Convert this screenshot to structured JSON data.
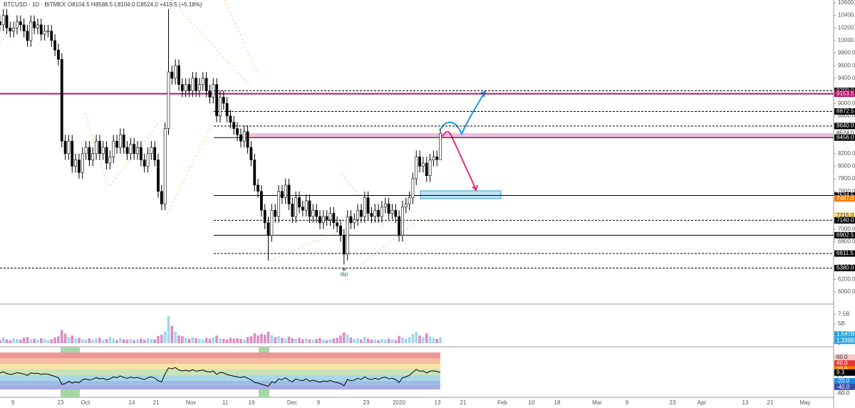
{
  "header": {
    "symbol": "BTCUSD · 1D · BITMEX",
    "ohlc": "O8104.5 H8588.5 L8104.0 C8524.0 +419.5 (+5.18%)"
  },
  "x_labels": [
    "9",
    "23",
    "Oct",
    "14",
    "21",
    "Nov",
    "11",
    "19",
    "Dec",
    "9",
    "23",
    "2020",
    "13",
    "21",
    "Feb",
    "10",
    "18",
    "Mar",
    "9",
    "23",
    "Apr",
    "13",
    "21",
    "May"
  ],
  "chart_data": [
    {
      "type": "candlestick",
      "up_color": "#ffffff",
      "down_color": "#000000",
      "ylim": [
        5830,
        10645
      ],
      "open": [
        10200,
        10300,
        10250,
        10400,
        10200,
        10150,
        10200,
        10300,
        10250,
        10150,
        10000,
        10300,
        10200,
        10250,
        10100,
        10150,
        10150,
        10000,
        9850,
        9700,
        8400,
        8200,
        8400,
        8000,
        8100,
        7900,
        8200,
        8300,
        8100,
        8200,
        8400,
        8200,
        8300,
        8050,
        8150,
        8400,
        8300,
        8500,
        8300,
        8200,
        8350,
        8200,
        8300,
        8100,
        8000,
        8200,
        8300,
        8100,
        7600,
        7400,
        8600,
        9500,
        9400,
        9600,
        9300,
        9200,
        9300,
        9200,
        9400,
        9200,
        9300,
        9400,
        9200,
        9100,
        9300,
        8800,
        9100,
        9000,
        8800,
        8700,
        8600,
        8500,
        8400,
        8550,
        8300,
        8100,
        7700,
        7600,
        7300,
        7100,
        6900,
        7300,
        7200,
        7600,
        7500,
        7700,
        7400,
        7200,
        7500,
        7350,
        7300,
        7450,
        7200,
        7300,
        7200,
        7100,
        7200,
        7150,
        7250,
        7100,
        7050,
        6900,
        6600,
        7200,
        7100,
        7150,
        7300,
        7200,
        7500,
        7250,
        7200,
        7300,
        7200,
        7350,
        7400,
        7250,
        7300,
        7200,
        6900,
        7350,
        7400,
        7500,
        7800,
        8150,
        8000,
        8050,
        7850,
        8100,
        8150,
        8104.5
      ],
      "high": [
        10400,
        10400,
        10500,
        10500,
        10300,
        10300,
        10400,
        10400,
        10350,
        10250,
        10400,
        10400,
        10350,
        10350,
        10250,
        10250,
        10250,
        10100,
        9950,
        9800,
        8500,
        8500,
        8500,
        8200,
        8200,
        8300,
        8400,
        8400,
        8300,
        8500,
        8500,
        8400,
        8400,
        8250,
        8500,
        8500,
        8600,
        8600,
        8400,
        8450,
        8450,
        8400,
        8400,
        8200,
        8300,
        8400,
        8400,
        8200,
        7700,
        8700,
        10500,
        9600,
        9700,
        9700,
        9400,
        9400,
        9400,
        9500,
        9500,
        9400,
        9500,
        9500,
        9300,
        9400,
        9400,
        9200,
        9200,
        9100,
        8900,
        8800,
        8700,
        8600,
        8650,
        8650,
        8400,
        8200,
        7800,
        7700,
        7400,
        7200,
        7400,
        7400,
        7700,
        7700,
        7800,
        7800,
        7500,
        7600,
        7600,
        7450,
        7550,
        7550,
        7400,
        7400,
        7300,
        7300,
        7300,
        7350,
        7350,
        7200,
        7150,
        7000,
        7300,
        7300,
        7250,
        7400,
        7400,
        7600,
        7600,
        7350,
        7400,
        7400,
        7450,
        7500,
        7500,
        7400,
        7400,
        7300,
        7450,
        7500,
        7600,
        7900,
        8250,
        8250,
        8150,
        8150,
        8200,
        8250,
        8250,
        8588.5
      ],
      "low": [
        10100,
        10150,
        10150,
        10100,
        10050,
        10050,
        10100,
        10150,
        10050,
        9900,
        9900,
        10100,
        10100,
        10000,
        10000,
        10050,
        9900,
        9750,
        9600,
        8300,
        8100,
        8100,
        7900,
        7900,
        7800,
        7800,
        8100,
        8000,
        8000,
        8100,
        8100,
        8100,
        7950,
        7950,
        8050,
        8200,
        8200,
        8200,
        8100,
        8100,
        8100,
        8100,
        8000,
        7900,
        7900,
        8100,
        8000,
        7500,
        7300,
        7300,
        8500,
        9300,
        9300,
        9200,
        9100,
        9100,
        9100,
        9100,
        9100,
        9100,
        9200,
        9100,
        9000,
        9000,
        8700,
        8700,
        8900,
        8700,
        8600,
        8500,
        8400,
        8300,
        8300,
        8200,
        8000,
        7600,
        7500,
        7200,
        7000,
        6500,
        6800,
        7100,
        7100,
        7400,
        7400,
        7300,
        7100,
        7100,
        7250,
        7200,
        7200,
        7100,
        7100,
        7100,
        7000,
        7000,
        7050,
        7050,
        7000,
        6950,
        6800,
        6435,
        6500,
        7000,
        7000,
        7050,
        7100,
        7100,
        7150,
        7100,
        7100,
        7100,
        7100,
        7250,
        7150,
        7150,
        7100,
        6800,
        6800,
        7250,
        7300,
        7400,
        7700,
        7900,
        7900,
        7750,
        7750,
        8000,
        8000,
        8104
      ],
      "close": [
        10300,
        10250,
        10400,
        10200,
        10150,
        10200,
        10300,
        10250,
        10150,
        10000,
        10300,
        10200,
        10250,
        10100,
        10150,
        10150,
        10000,
        9850,
        9700,
        8400,
        8200,
        8400,
        8000,
        8100,
        7900,
        8200,
        8300,
        8100,
        8200,
        8400,
        8200,
        8300,
        8050,
        8150,
        8400,
        8300,
        8500,
        8300,
        8200,
        8350,
        8200,
        8300,
        8100,
        8000,
        8200,
        8300,
        8100,
        7600,
        7400,
        8600,
        9500,
        9400,
        9600,
        9300,
        9200,
        9300,
        9200,
        9400,
        9200,
        9300,
        9400,
        9200,
        9100,
        9300,
        8800,
        9100,
        9000,
        8800,
        8700,
        8600,
        8500,
        8400,
        8550,
        8300,
        8100,
        7700,
        7600,
        7300,
        7100,
        6900,
        7300,
        7200,
        7600,
        7500,
        7700,
        7400,
        7200,
        7500,
        7350,
        7300,
        7450,
        7200,
        7300,
        7200,
        7100,
        7200,
        7150,
        7250,
        7100,
        7050,
        6900,
        6600,
        7200,
        7100,
        7150,
        7300,
        7200,
        7500,
        7250,
        7200,
        7300,
        7200,
        7350,
        7400,
        7250,
        7300,
        7200,
        6900,
        7350,
        7400,
        7500,
        7800,
        8150,
        8000,
        8050,
        7850,
        8100,
        8150,
        8104.5,
        8524
      ],
      "yticks": [
        {
          "value": 10600,
          "label": "10600.0"
        },
        {
          "value": 10400,
          "label": "10400.0"
        },
        {
          "value": 10200,
          "label": "10200.0"
        },
        {
          "value": 10000,
          "label": "10000.0"
        },
        {
          "value": 9800,
          "label": "9800.0"
        },
        {
          "value": 9600,
          "label": "9600.0"
        },
        {
          "value": 9400,
          "label": "9400.0"
        },
        {
          "value": 9000,
          "label": "9000.0"
        },
        {
          "value": 8800,
          "label": "8800.0"
        },
        {
          "value": 8200,
          "label": "8200.0"
        },
        {
          "value": 8000,
          "label": "8000.0"
        },
        {
          "value": 7800,
          "label": "7800.0"
        },
        {
          "value": 7600,
          "label": "7600.0"
        },
        {
          "value": 7000,
          "label": "7000.0"
        },
        {
          "value": 6800,
          "label": "6800.0"
        },
        {
          "value": 6400,
          "label": "6400.0"
        },
        {
          "value": 6200,
          "label": "6200.0"
        },
        {
          "value": 6000,
          "label": "6000.0"
        }
      ],
      "levels": [
        {
          "value": 9200,
          "label": "9200.0",
          "color": "#000000",
          "line": "dashed"
        },
        {
          "value": 9153.5,
          "label": "9153.5",
          "color": "#b5136b",
          "line": "solid"
        },
        {
          "value": 8872.5,
          "label": "8872.5",
          "color": "#000000",
          "line": "dashed"
        },
        {
          "value": 8640,
          "label": "8640.0",
          "color": "#000000",
          "line": "dashed"
        },
        {
          "value": 8524,
          "label": "8524.0",
          "color": "#ffffff",
          "line": "none"
        },
        {
          "value": 8456,
          "label": "8456.0",
          "color": "#000000",
          "line": "solid"
        },
        {
          "value": 7534.5,
          "label": "7534.5",
          "color": "#000000",
          "line": "solid"
        },
        {
          "value": 7487,
          "label": "7487.0",
          "color": "#f57c00",
          "line": "none"
        },
        {
          "value": 7215,
          "label": "7215.0",
          "color": "#ffe082",
          "line": "none"
        },
        {
          "value": 7140,
          "label": "7140.0",
          "color": "#000000",
          "line": "dashed"
        },
        {
          "value": 6902.5,
          "label": "6902.5",
          "color": "#000000",
          "line": "solid"
        },
        {
          "value": 6611.5,
          "label": "6611.5",
          "color": "#000000",
          "line": "dashed"
        },
        {
          "value": 6380,
          "label": "6380.0",
          "color": "#000000",
          "line": "dashed"
        }
      ],
      "annotation": "dip"
    },
    {
      "type": "bar",
      "ylim": [
        0,
        9.6
      ],
      "up_color": "#9fd8ec",
      "down_color": "#d98fc0",
      "values": [
        1.2,
        0.9,
        1.5,
        1.0,
        0.8,
        1.3,
        1.1,
        0.9,
        1.4,
        1.6,
        1.0,
        1.2,
        0.9,
        1.3,
        1.1,
        0.8,
        1.0,
        1.5,
        1.8,
        3.4,
        2.5,
        1.6,
        2.0,
        1.2,
        1.4,
        1.1,
        0.9,
        1.3,
        1.0,
        1.2,
        1.4,
        0.9,
        1.1,
        1.6,
        1.2,
        0.8,
        1.3,
        1.0,
        0.9,
        1.1,
        0.8,
        1.0,
        1.2,
        0.9,
        1.3,
        1.1,
        1.0,
        1.9,
        2.2,
        3.1,
        7.0,
        4.5,
        3.0,
        2.0,
        1.8,
        1.4,
        1.2,
        1.6,
        1.3,
        1.1,
        1.0,
        1.4,
        1.2,
        1.5,
        2.0,
        1.3,
        1.1,
        1.0,
        1.4,
        1.2,
        1.3,
        1.1,
        0.9,
        1.6,
        1.8,
        2.6,
        2.0,
        2.4,
        2.2,
        3.0,
        2.1,
        1.6,
        1.8,
        1.4,
        1.2,
        1.7,
        1.3,
        1.1,
        1.4,
        1.0,
        1.2,
        1.0,
        0.9,
        1.1,
        1.3,
        0.9,
        0.8,
        1.0,
        1.2,
        1.4,
        2.0,
        2.8,
        2.2,
        1.5,
        1.1,
        1.3,
        1.0,
        1.6,
        1.2,
        0.9,
        1.0,
        0.8,
        1.1,
        0.9,
        1.2,
        1.0,
        0.8,
        1.9,
        1.5,
        1.2,
        1.6,
        2.4,
        3.0,
        2.0,
        1.6,
        2.6,
        1.8,
        1.4,
        1.1,
        1.547
      ],
      "yticks": [
        {
          "value": 7.5,
          "label": "7.5B"
        },
        {
          "value": 5,
          "label": "5B"
        },
        0
      ],
      "markers": [
        {
          "value": 1.547,
          "label": "1.547B",
          "color": "#26a7de"
        },
        {
          "value": 1.339,
          "label": "1.339B",
          "color": "#26a7de"
        }
      ]
    },
    {
      "type": "line",
      "ylim": [
        -62,
        89
      ],
      "color": "#000000",
      "values": [
        5,
        8,
        12,
        6,
        3,
        5,
        9,
        7,
        4,
        0,
        8,
        6,
        7,
        3,
        5,
        4,
        0,
        -4,
        -8,
        -30,
        -28,
        -20,
        -26,
        -22,
        -25,
        -15,
        -12,
        -16,
        -13,
        -8,
        -12,
        -10,
        -15,
        -12,
        -5,
        -8,
        -2,
        -7,
        -10,
        -6,
        -9,
        -7,
        -11,
        -14,
        -8,
        -5,
        -9,
        -18,
        -22,
        5,
        25,
        22,
        26,
        18,
        15,
        17,
        14,
        19,
        14,
        16,
        18,
        13,
        11,
        15,
        3,
        10,
        8,
        3,
        0,
        -3,
        -5,
        -8,
        -4,
        -10,
        -15,
        -24,
        -26,
        -30,
        -33,
        -37,
        -22,
        -25,
        -12,
        -15,
        -8,
        -17,
        -22,
        -12,
        -16,
        -18,
        -12,
        -20,
        -16,
        -20,
        -23,
        -19,
        -21,
        -17,
        -22,
        -24,
        -28,
        -35,
        -14,
        -18,
        -16,
        -10,
        -14,
        -5,
        -12,
        -14,
        -10,
        -14,
        -8,
        -6,
        -12,
        -10,
        -14,
        -24,
        -8,
        -5,
        0,
        10,
        20,
        14,
        15,
        8,
        14,
        15,
        13,
        9.3
      ],
      "yticks": [
        {
          "value": 60,
          "label": "60.0",
          "color": "#f6c6c6"
        },
        {
          "value": 40,
          "label": "40.0",
          "color": "#e53935"
        },
        {
          "value": 20,
          "label": "20.0",
          "color": "#f57c00"
        },
        {
          "value": 0,
          "label": "0.0",
          "color": "#ffffff"
        },
        {
          "value": -20,
          "label": "-20.0",
          "color": "#1e88e5"
        },
        {
          "value": -40,
          "label": "-40.0",
          "color": "#3949ab"
        },
        {
          "value": -60,
          "label": "-60.0",
          "color": "#ffffff"
        }
      ],
      "markers": [
        {
          "value": 9.3,
          "label": "9.3",
          "color": "#000000"
        }
      ]
    }
  ]
}
